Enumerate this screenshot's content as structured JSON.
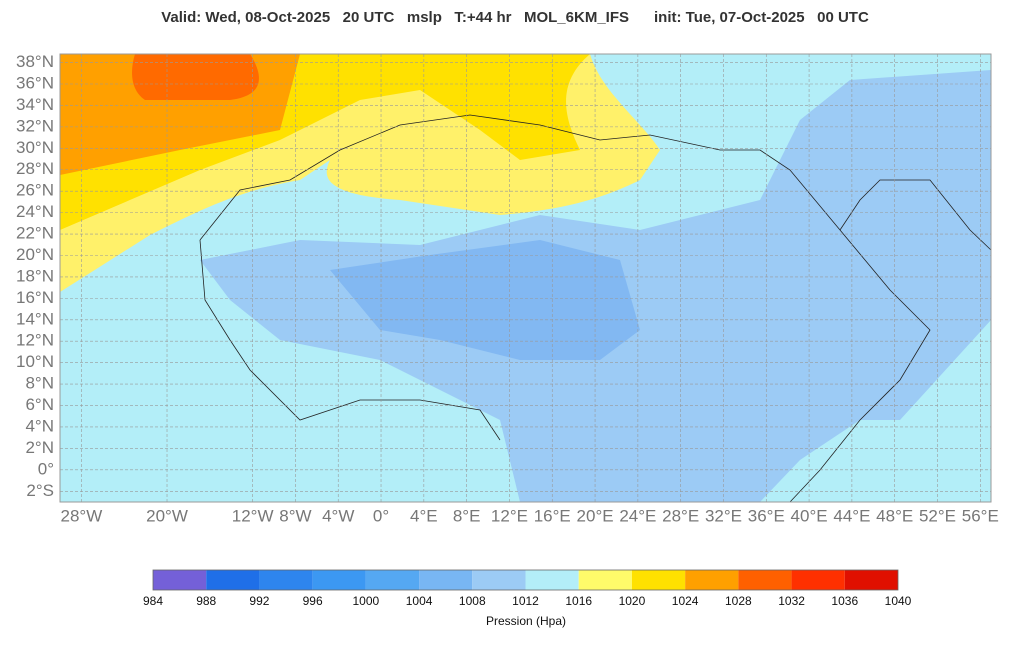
{
  "header": {
    "title": "Valid: Wed, 08-Oct-2025   20 UTC   mslp   T:+44 hr   MOL_6KM_IFS      init: Tue, 07-Oct-2025   00 UTC"
  },
  "map": {
    "lon_range": [
      -30,
      57
    ],
    "lat_range": [
      -3,
      38.8
    ],
    "lat_ticks": [
      {
        "value": 38,
        "label": "38°N"
      },
      {
        "value": 36,
        "label": "36°N"
      },
      {
        "value": 34,
        "label": "34°N"
      },
      {
        "value": 32,
        "label": "32°N"
      },
      {
        "value": 30,
        "label": "30°N"
      },
      {
        "value": 28,
        "label": "28°N"
      },
      {
        "value": 26,
        "label": "26°N"
      },
      {
        "value": 24,
        "label": "24°N"
      },
      {
        "value": 22,
        "label": "22°N"
      },
      {
        "value": 20,
        "label": "20°N"
      },
      {
        "value": 18,
        "label": "18°N"
      },
      {
        "value": 16,
        "label": "16°N"
      },
      {
        "value": 14,
        "label": "14°N"
      },
      {
        "value": 12,
        "label": "12°N"
      },
      {
        "value": 10,
        "label": "10°N"
      },
      {
        "value": 8,
        "label": "8°N"
      },
      {
        "value": 6,
        "label": "6°N"
      },
      {
        "value": 4,
        "label": "4°N"
      },
      {
        "value": 2,
        "label": "2°N"
      },
      {
        "value": 0,
        "label": "0°"
      },
      {
        "value": -2,
        "label": "2°S"
      }
    ],
    "lon_ticks": [
      {
        "value": -28,
        "label": "28°W"
      },
      {
        "value": -20,
        "label": "20°W"
      },
      {
        "value": -12,
        "label": "12°W"
      },
      {
        "value": -8,
        "label": "8°W"
      },
      {
        "value": -4,
        "label": "4°W"
      },
      {
        "value": 0,
        "label": "0°"
      },
      {
        "value": 4,
        "label": "4°E"
      },
      {
        "value": 8,
        "label": "8°E"
      },
      {
        "value": 12,
        "label": "12°E"
      },
      {
        "value": 16,
        "label": "16°E"
      },
      {
        "value": 20,
        "label": "20°E"
      },
      {
        "value": 24,
        "label": "24°E"
      },
      {
        "value": 28,
        "label": "28°E"
      },
      {
        "value": 32,
        "label": "32°E"
      },
      {
        "value": 36,
        "label": "36°E"
      },
      {
        "value": 40,
        "label": "40°E"
      },
      {
        "value": 44,
        "label": "44°E"
      },
      {
        "value": 48,
        "label": "48°E"
      },
      {
        "value": 52,
        "label": "52°E"
      },
      {
        "value": 56,
        "label": "56°E"
      }
    ]
  },
  "colorbar": {
    "label": "Pression (Hpa)",
    "ticks": [
      984,
      988,
      992,
      996,
      1000,
      1004,
      1008,
      1012,
      1016,
      1020,
      1024,
      1028,
      1032,
      1036,
      1040
    ],
    "colors": [
      "#7460d8",
      "#1f6fe8",
      "#2e85ee",
      "#3c98f2",
      "#55a8f2",
      "#78b6f3",
      "#9ccbf5",
      "#b3eef8",
      "#fffb6a",
      "#ffe100",
      "#ffa000",
      "#ff6000",
      "#ff3000",
      "#e01000"
    ]
  }
}
